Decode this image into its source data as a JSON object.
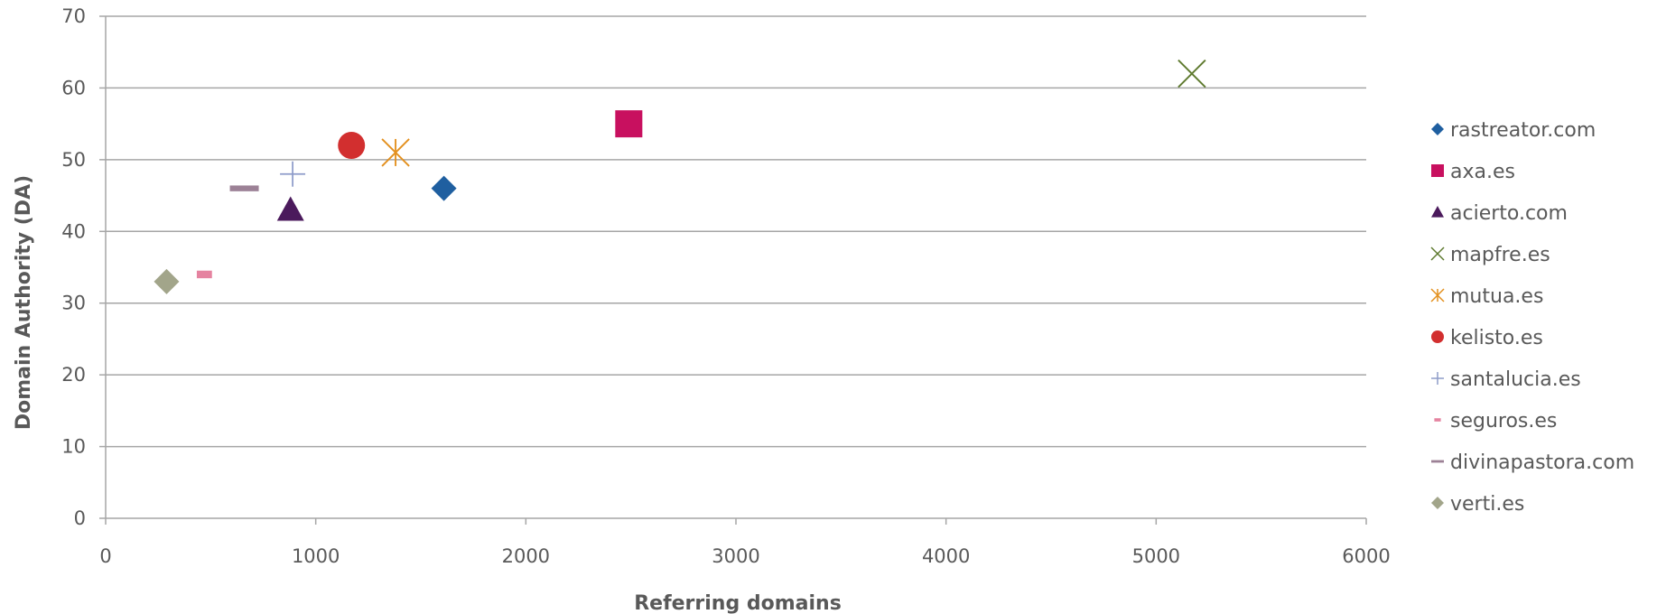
{
  "chart_data": {
    "type": "scatter",
    "title": "",
    "xlabel": "Referring domains",
    "ylabel": "Domain Authority (DA)",
    "xlim": [
      0,
      6000
    ],
    "ylim": [
      0,
      70
    ],
    "xticks": [
      0,
      1000,
      2000,
      3000,
      4000,
      5000,
      6000
    ],
    "yticks": [
      0,
      10,
      20,
      30,
      40,
      50,
      60,
      70
    ],
    "grid": "horizontal",
    "legend_position": "right",
    "series": [
      {
        "name": "rastreator.com",
        "marker": "diamond",
        "color": "#1F5FA0",
        "x": 1610,
        "y": 46
      },
      {
        "name": "axa.es",
        "marker": "square",
        "color": "#C8105F",
        "x": 2490,
        "y": 55
      },
      {
        "name": "acierto.com",
        "marker": "triangle",
        "color": "#4B1A5C",
        "x": 880,
        "y": 43
      },
      {
        "name": "mapfre.es",
        "marker": "x",
        "color": "#5E7A2E",
        "x": 5170,
        "y": 62
      },
      {
        "name": "mutua.es",
        "marker": "asterisk",
        "color": "#E3901E",
        "x": 1380,
        "y": 51
      },
      {
        "name": "kelisto.es",
        "marker": "circle",
        "color": "#D22F2F",
        "x": 1170,
        "y": 52
      },
      {
        "name": "santalucia.es",
        "marker": "plus",
        "color": "#8E9CC9",
        "x": 890,
        "y": 48
      },
      {
        "name": "seguros.es",
        "marker": "short-dash",
        "color": "#E583A0",
        "x": 470,
        "y": 34
      },
      {
        "name": "divinapastora.com",
        "marker": "dash",
        "color": "#9C8196",
        "x": 660,
        "y": 46
      },
      {
        "name": "verti.es",
        "marker": "diamond",
        "color": "#A2A58A",
        "x": 290,
        "y": 33
      }
    ]
  }
}
